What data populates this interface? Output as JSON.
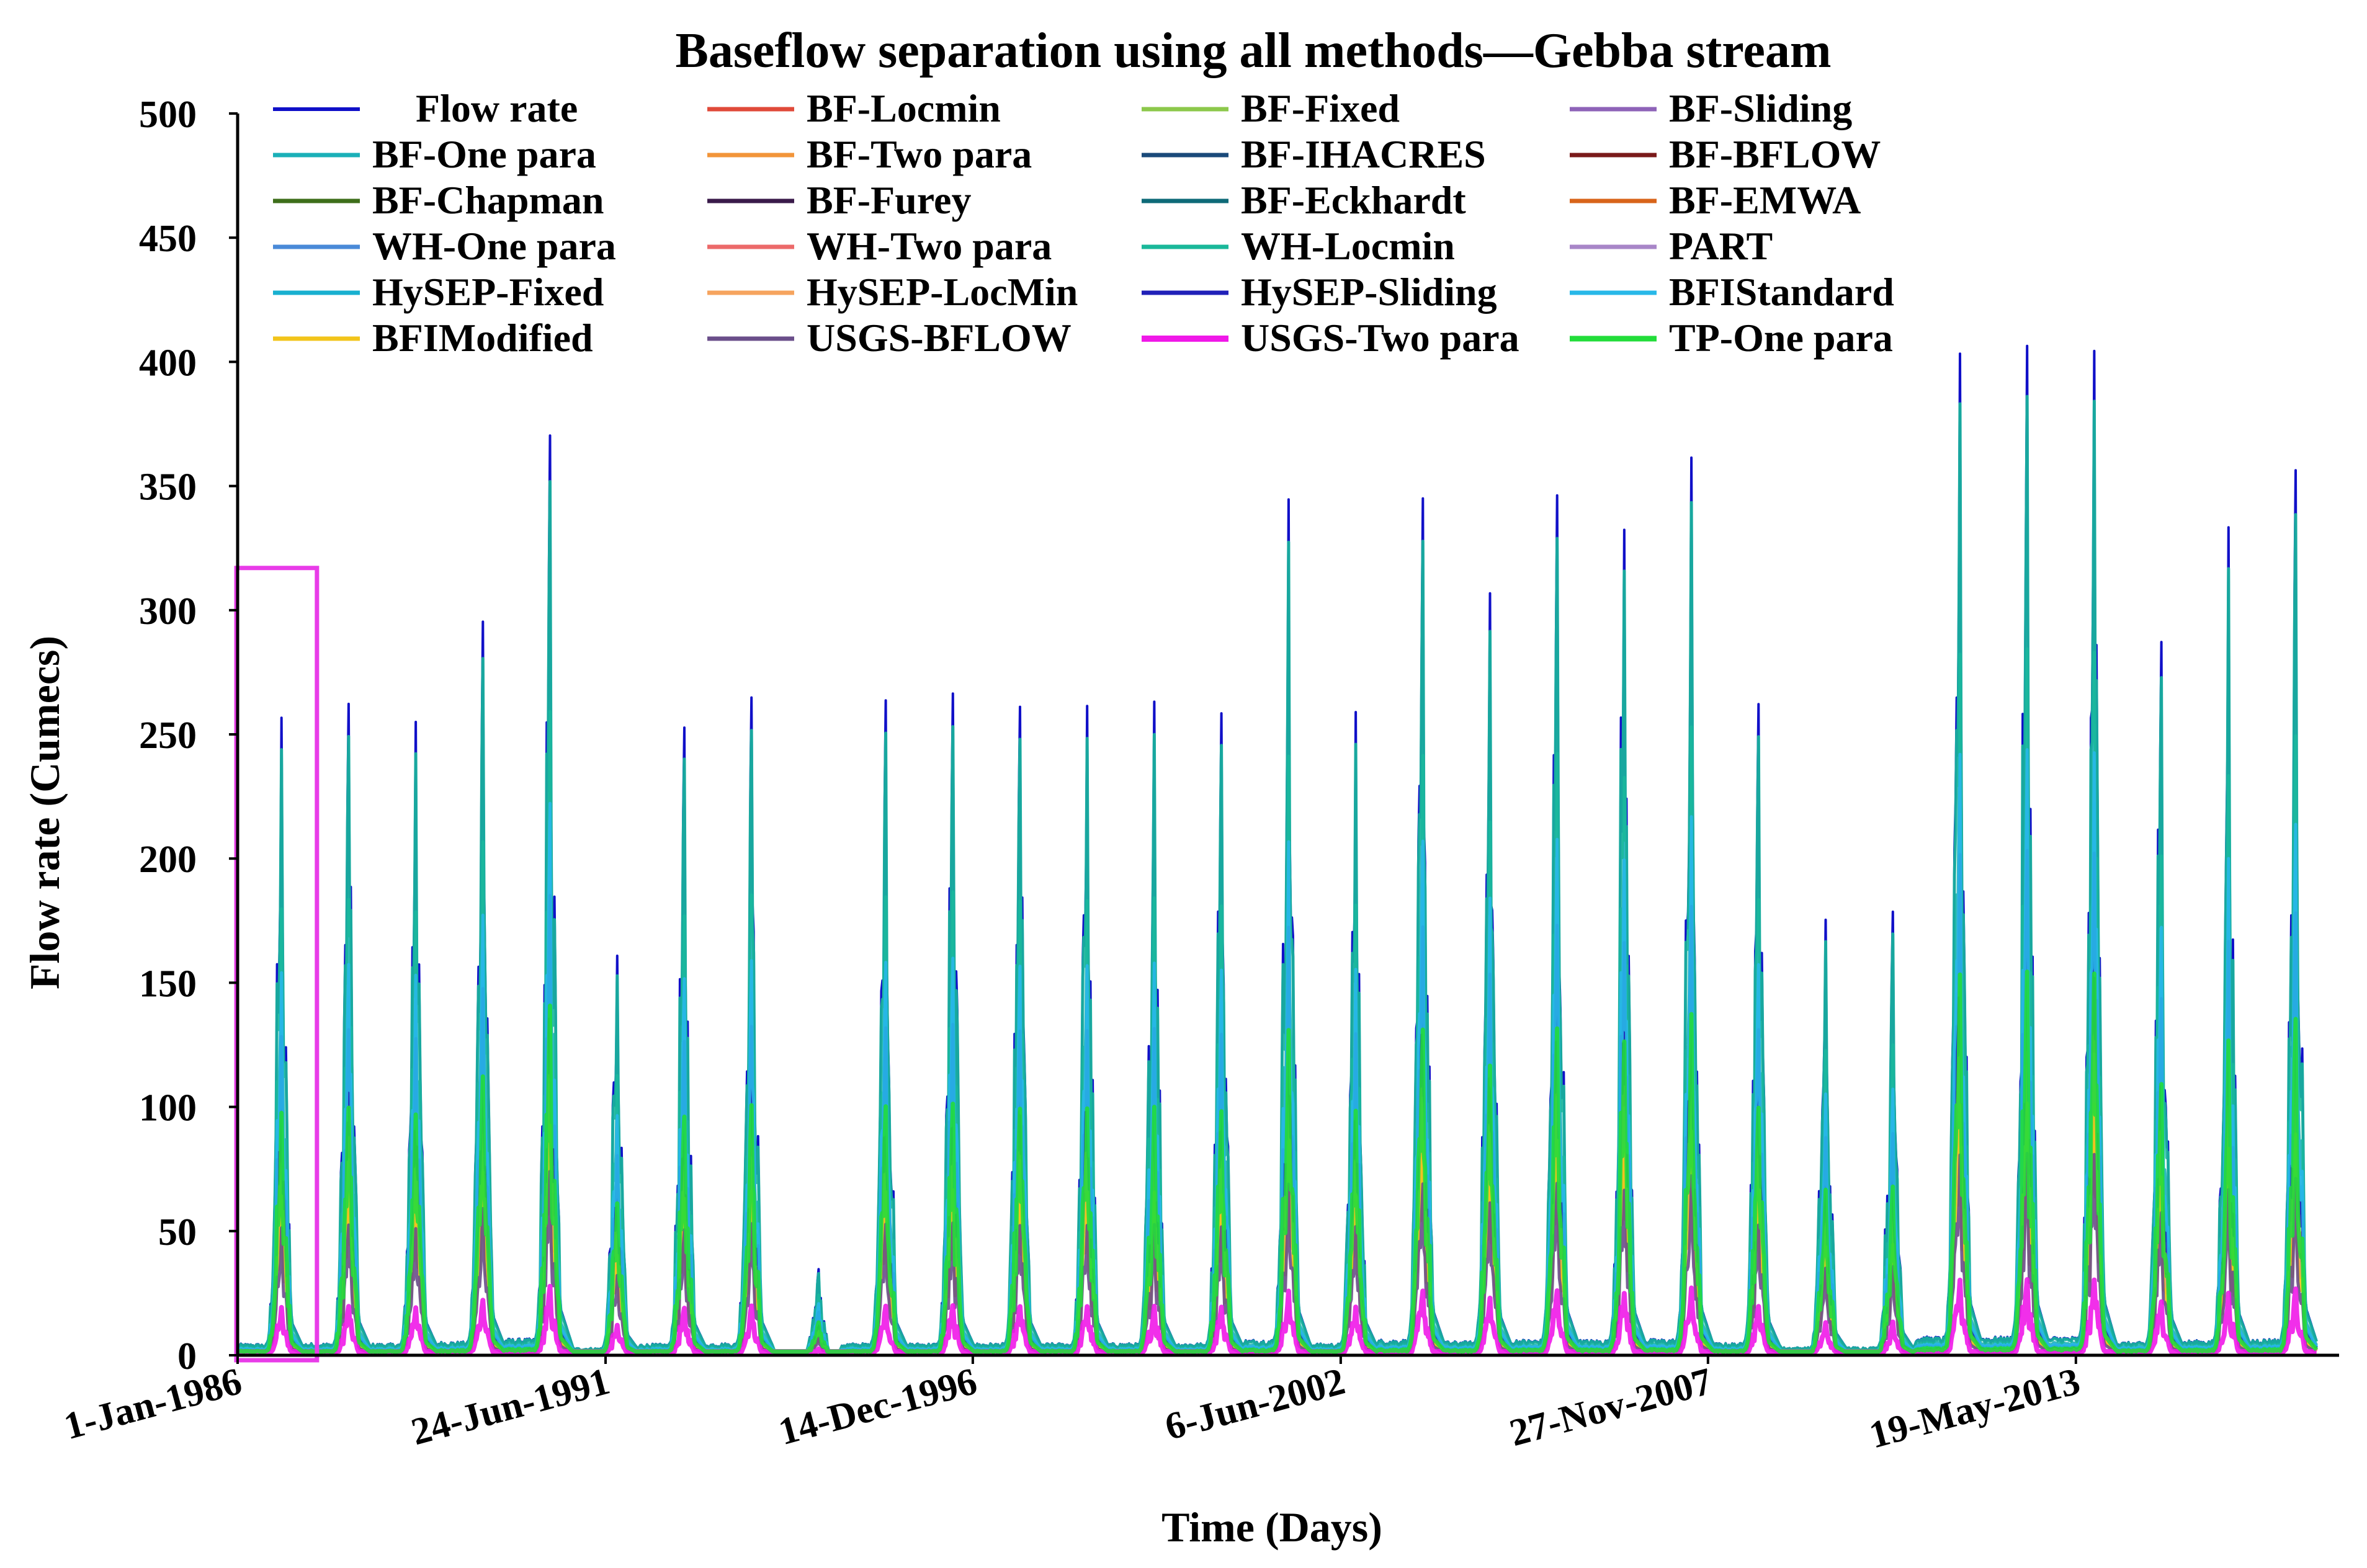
{
  "chart_data": {
    "type": "line",
    "title": "Baseflow separation using all methods—Gebba stream",
    "xlabel": "Time (Days)",
    "ylabel": "Flow rate (Cumecs)",
    "ylim": [
      0,
      500
    ],
    "yticks": [
      0,
      50,
      100,
      150,
      200,
      250,
      300,
      350,
      400,
      450,
      500
    ],
    "x_range_years": [
      1986.0,
      2017.3
    ],
    "xticks": [
      {
        "label": "1-Jan-1986",
        "year": 1986.0
      },
      {
        "label": "24-Jun-1991",
        "year": 1991.48
      },
      {
        "label": "14-Dec-1996",
        "year": 1996.95
      },
      {
        "label": "6-Jun-2002",
        "year": 2002.43
      },
      {
        "label": "27-Nov-2007",
        "year": 2007.9
      },
      {
        "label": "19-May-2013",
        "year": 2013.38
      }
    ],
    "legend_position": "top",
    "highlight_box": {
      "from_year": 1986.0,
      "to_year": 1987.2,
      "y_top": 317,
      "color": "#e83ce8"
    },
    "annual_peaks": [
      {
        "year": 1986,
        "flow": 258
      },
      {
        "year": 1987,
        "flow": 270
      },
      {
        "year": 1988,
        "flow": 262
      },
      {
        "year": 1989,
        "flow": 306
      },
      {
        "year": 1990,
        "flow": 372
      },
      {
        "year": 1991,
        "flow": 163
      },
      {
        "year": 1992,
        "flow": 255
      },
      {
        "year": 1993,
        "flow": 270
      },
      {
        "year": 1994,
        "flow": 36
      },
      {
        "year": 1995,
        "flow": 268
      },
      {
        "year": 1996,
        "flow": 268
      },
      {
        "year": 1997,
        "flow": 268
      },
      {
        "year": 1998,
        "flow": 268
      },
      {
        "year": 1999,
        "flow": 268
      },
      {
        "year": 2000,
        "flow": 268
      },
      {
        "year": 2001,
        "flow": 352
      },
      {
        "year": 2002,
        "flow": 261
      },
      {
        "year": 2003,
        "flow": 352
      },
      {
        "year": 2004,
        "flow": 311
      },
      {
        "year": 2005,
        "flow": 352
      },
      {
        "year": 2006,
        "flow": 345
      },
      {
        "year": 2007,
        "flow": 362
      },
      {
        "year": 2008,
        "flow": 273
      },
      {
        "year": 2009,
        "flow": 178
      },
      {
        "year": 2010,
        "flow": 182
      },
      {
        "year": 2011,
        "flow": 418
      },
      {
        "year": 2012,
        "flow": 417
      },
      {
        "year": 2013,
        "flow": 420
      },
      {
        "year": 2014,
        "flow": 295
      },
      {
        "year": 2015,
        "flow": 335
      },
      {
        "year": 2016,
        "flow": 370
      }
    ],
    "series": [
      {
        "name": "Flow rate",
        "color": "#1010c8",
        "scale": 1.0,
        "width": 4
      },
      {
        "name": "BF-Locmin",
        "color": "#e04a3a",
        "scale": 0.3,
        "width": 5
      },
      {
        "name": "BF-Fixed",
        "color": "#8cc84b",
        "scale": 0.3,
        "width": 5
      },
      {
        "name": "BF-Sliding",
        "color": "#8e63b8",
        "scale": 0.3,
        "width": 5
      },
      {
        "name": "BF-One para",
        "color": "#1ab0b8",
        "scale": 0.7,
        "width": 5
      },
      {
        "name": "BF-Two para",
        "color": "#f2953a",
        "scale": 0.4,
        "width": 5
      },
      {
        "name": "BF-IHACRES",
        "color": "#1a4a7a",
        "scale": 0.3,
        "width": 5
      },
      {
        "name": "BF-BFLOW",
        "color": "#7a1a1a",
        "scale": 0.35,
        "width": 5
      },
      {
        "name": "BF-Chapman",
        "color": "#3e6e1a",
        "scale": 0.3,
        "width": 5
      },
      {
        "name": "BF-Furey",
        "color": "#3a1a4a",
        "scale": 0.3,
        "width": 5
      },
      {
        "name": "BF-Eckhardt",
        "color": "#0e6a78",
        "scale": 0.3,
        "width": 5
      },
      {
        "name": "BF-EMWA",
        "color": "#d8641a",
        "scale": 0.3,
        "width": 5
      },
      {
        "name": "WH-One para",
        "color": "#4a8ad8",
        "scale": 0.55,
        "width": 5
      },
      {
        "name": "WH-Two para",
        "color": "#ec6a6a",
        "scale": 0.4,
        "width": 5
      },
      {
        "name": "WH-Locmin",
        "color": "#1ab89a",
        "scale": 0.95,
        "width": 5
      },
      {
        "name": "PART",
        "color": "#a886c8",
        "scale": 0.3,
        "width": 5
      },
      {
        "name": "HySEP-Fixed",
        "color": "#18b0d0",
        "scale": 0.55,
        "width": 5
      },
      {
        "name": "HySEP-LocMin",
        "color": "#f6a45e",
        "scale": 0.3,
        "width": 5
      },
      {
        "name": "HySEP-Sliding",
        "color": "#2020b8",
        "scale": 0.5,
        "width": 5
      },
      {
        "name": "BFIStandard",
        "color": "#28b8e8",
        "scale": 0.6,
        "width": 5
      },
      {
        "name": "BFIModified",
        "color": "#f2c41a",
        "scale": 0.25,
        "width": 5
      },
      {
        "name": "USGS-BFLOW",
        "color": "#6a4e8a",
        "scale": 0.2,
        "width": 5
      },
      {
        "name": "USGS-Two para",
        "color": "#f018e8",
        "scale": 0.075,
        "width": 8
      },
      {
        "name": "TP-One para",
        "color": "#22dd3a",
        "scale": 0.38,
        "width": 7
      }
    ]
  }
}
